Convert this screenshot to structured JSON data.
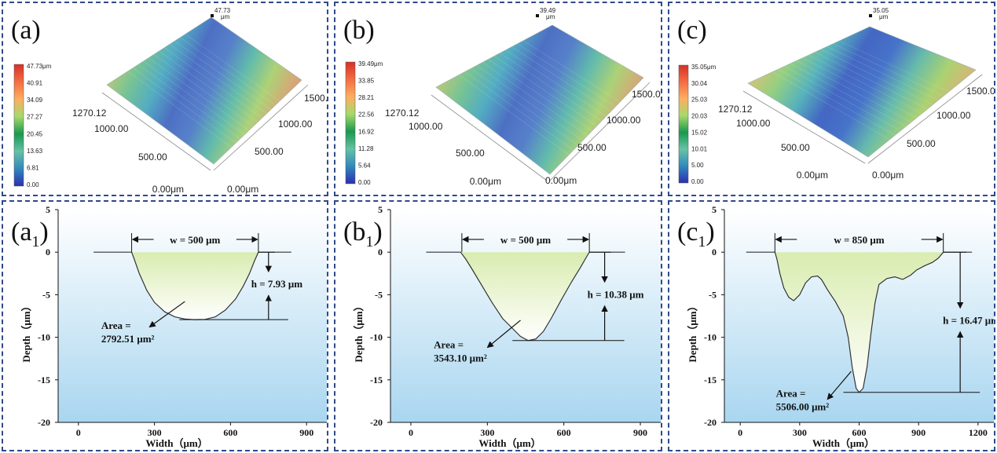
{
  "colors": {
    "border": "#2f4a8a",
    "profile_fill_top": "#d9ecb0",
    "panel_bg_top": "#ffffff",
    "panel_bg_bottom": "#a9d6f0",
    "line": "#333333"
  },
  "panels_3d": [
    {
      "label": "(a)",
      "peak_value": "47.73",
      "peak_unit": "μm",
      "colorbar_ticks": [
        "47.73μm",
        "40.91",
        "34.09",
        "27.27",
        "20.45",
        "13.63",
        "6.81",
        "0.00"
      ],
      "x_axis_ticks": [
        "1500.00",
        "1000.00",
        "500.00",
        "0.00μm"
      ],
      "y_axis_ticks": [
        "1270.12",
        "1000.00",
        "500.00",
        "0.00μm"
      ]
    },
    {
      "label": "(b)",
      "peak_value": "39.49",
      "peak_unit": "μm",
      "colorbar_ticks": [
        "39.49μm",
        "33.85",
        "28.21",
        "22.56",
        "16.92",
        "11.28",
        "5.64",
        "0.00"
      ],
      "x_axis_ticks": [
        "1500.00",
        "1000.00",
        "500.00",
        "0.00μm"
      ],
      "y_axis_ticks": [
        "1270.12",
        "1000.00",
        "500.00",
        "0.00μm"
      ]
    },
    {
      "label": "(c)",
      "peak_value": "35.05",
      "peak_unit": "μm",
      "colorbar_ticks": [
        "35.05μm",
        "30.04",
        "25.03",
        "20.03",
        "15.02",
        "10.01",
        "5.00",
        "0.00"
      ],
      "x_axis_ticks": [
        "1500.00",
        "1000.00",
        "500.00",
        "0.00μm"
      ],
      "y_axis_ticks": [
        "1270.12",
        "1000.00",
        "500.00",
        "0.00μm"
      ]
    }
  ],
  "chart_data": [
    {
      "type": "line",
      "label_letter": "a",
      "label_sub": "1",
      "xlabel": "Width（μm）",
      "ylabel": "Depth（μm）",
      "xlim": [
        -80,
        980
      ],
      "ylim": [
        -20,
        5
      ],
      "xticks": [
        0,
        300,
        600,
        900
      ],
      "yticks": [
        5,
        0,
        -5,
        -10,
        -15,
        -20
      ],
      "profile": [
        [
          60,
          0
        ],
        [
          210,
          0
        ],
        [
          220,
          -0.8
        ],
        [
          240,
          -2.5
        ],
        [
          270,
          -4.5
        ],
        [
          300,
          -5.9
        ],
        [
          340,
          -7.0
        ],
        [
          380,
          -7.6
        ],
        [
          420,
          -7.85
        ],
        [
          460,
          -7.93
        ],
        [
          500,
          -7.9
        ],
        [
          540,
          -7.6
        ],
        [
          580,
          -6.8
        ],
        [
          620,
          -5.5
        ],
        [
          650,
          -4.0
        ],
        [
          675,
          -2.5
        ],
        [
          695,
          -1.0
        ],
        [
          710,
          0
        ],
        [
          840,
          0
        ]
      ],
      "width_text": "w = 500 μm",
      "width_range": [
        210,
        710
      ],
      "width_y": 1.5,
      "depth_text": "h = 7.93 μm",
      "depth_x": 750,
      "depth_bottom": -7.93,
      "area_label": "Area =",
      "area_value": "2792.51 μm²",
      "area_text_pos": [
        90,
        -9.0
      ],
      "area_arrow_from": [
        420,
        -5.8
      ],
      "area_arrow_to": [
        280,
        -8.8
      ]
    },
    {
      "type": "line",
      "label_letter": "b",
      "label_sub": "1",
      "xlabel": "Width（μm）",
      "ylabel": "Depth（μm）",
      "xlim": [
        -80,
        980
      ],
      "ylim": [
        -20,
        5
      ],
      "xticks": [
        0,
        300,
        600,
        900
      ],
      "yticks": [
        5,
        0,
        -5,
        -10,
        -15,
        -20
      ],
      "profile": [
        [
          60,
          0
        ],
        [
          195,
          0
        ],
        [
          215,
          -0.8
        ],
        [
          240,
          -2.0
        ],
        [
          280,
          -4.0
        ],
        [
          320,
          -6.0
        ],
        [
          360,
          -7.8
        ],
        [
          400,
          -9.0
        ],
        [
          430,
          -9.9
        ],
        [
          460,
          -10.38
        ],
        [
          490,
          -10.2
        ],
        [
          520,
          -9.3
        ],
        [
          550,
          -7.8
        ],
        [
          590,
          -5.6
        ],
        [
          630,
          -3.5
        ],
        [
          665,
          -1.8
        ],
        [
          690,
          -0.5
        ],
        [
          700,
          0
        ],
        [
          840,
          0
        ]
      ],
      "width_text": "w = 500 μm",
      "width_range": [
        200,
        700
      ],
      "width_y": 1.5,
      "depth_text": "h = 10.38 μm",
      "depth_x": 760,
      "depth_bottom": -10.38,
      "area_label": "Area =",
      "area_value": "3543.10 μm²",
      "area_text_pos": [
        90,
        -11.3
      ],
      "area_arrow_from": [
        430,
        -8.0
      ],
      "area_arrow_to": [
        300,
        -11.2
      ]
    },
    {
      "type": "line",
      "label_letter": "c",
      "label_sub": "1",
      "xlabel": "Width（μm）",
      "ylabel": "Depth（μm）",
      "xlim": [
        -80,
        1280
      ],
      "ylim": [
        -20,
        5
      ],
      "xticks": [
        0,
        300,
        600,
        900,
        1200
      ],
      "yticks": [
        5,
        0,
        -5,
        -10,
        -15,
        -20
      ],
      "profile": [
        [
          30,
          0
        ],
        [
          175,
          0
        ],
        [
          185,
          -0.8
        ],
        [
          200,
          -2.5
        ],
        [
          220,
          -4.2
        ],
        [
          245,
          -5.3
        ],
        [
          270,
          -5.7
        ],
        [
          300,
          -5.0
        ],
        [
          330,
          -3.6
        ],
        [
          360,
          -2.9
        ],
        [
          390,
          -2.8
        ],
        [
          410,
          -3.2
        ],
        [
          440,
          -4.4
        ],
        [
          480,
          -5.8
        ],
        [
          520,
          -7.5
        ],
        [
          545,
          -10.0
        ],
        [
          565,
          -13.5
        ],
        [
          585,
          -16.0
        ],
        [
          600,
          -16.47
        ],
        [
          620,
          -16.0
        ],
        [
          640,
          -13.5
        ],
        [
          660,
          -9.5
        ],
        [
          680,
          -6.0
        ],
        [
          700,
          -3.8
        ],
        [
          740,
          -3.1
        ],
        [
          780,
          -2.9
        ],
        [
          820,
          -3.2
        ],
        [
          860,
          -2.7
        ],
        [
          890,
          -2.1
        ],
        [
          930,
          -1.6
        ],
        [
          970,
          -1.2
        ],
        [
          1000,
          -0.7
        ],
        [
          1025,
          0
        ],
        [
          1170,
          0
        ]
      ],
      "width_text": "w = 850 μm",
      "width_range": [
        175,
        1025
      ],
      "width_y": 1.5,
      "depth_text": "h = 16.47 μm",
      "depth_x": 1110,
      "depth_bottom": -16.47,
      "area_label": "Area =",
      "area_value": "5506.00 μm²",
      "area_text_pos": [
        180,
        -17.0
      ],
      "area_arrow_from": [
        560,
        -14.0
      ],
      "area_arrow_to": [
        440,
        -17.3
      ]
    }
  ]
}
